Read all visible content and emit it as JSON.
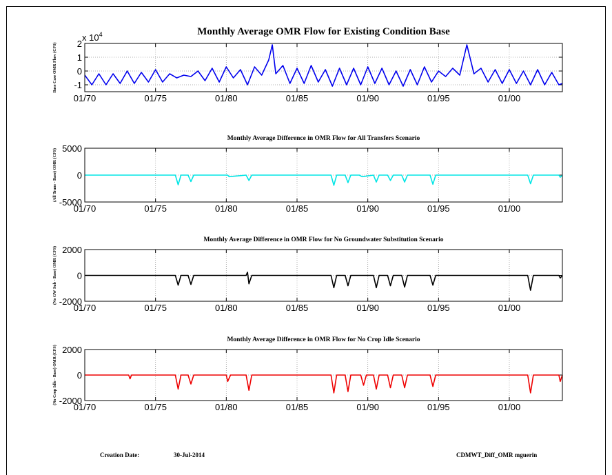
{
  "footer": {
    "creation_label": "Creation Date:",
    "creation_date": "30-Jul-2014",
    "file_tag": "CDMWT_Diff_OMR mguerin"
  },
  "chart_data": [
    {
      "type": "line",
      "title": "Monthly Average OMR Flow for Existing Condition Base",
      "ylabel": "Base Case OMR Flow (CFS)",
      "xlabel": "",
      "x_ticks": [
        "01/70",
        "01/75",
        "01/80",
        "01/85",
        "01/90",
        "01/95",
        "01/00"
      ],
      "y_ticks": [
        "2",
        "1",
        "0",
        "-1"
      ],
      "y_exponent_label": "x 10",
      "y_exponent_power": "4",
      "ylim": [
        -1.5,
        2
      ],
      "xlim": [
        1970.0,
        2003.75
      ],
      "grid": true,
      "color": "#0000ee",
      "series": [
        {
          "x": [
            1970.0,
            1970.5,
            1971.0,
            1971.5,
            1972.0,
            1972.5,
            1973.0,
            1973.5,
            1974.0,
            1974.5,
            1975.0,
            1975.5,
            1976.0,
            1976.5,
            1977.0,
            1977.5,
            1978.0,
            1978.5,
            1979.0,
            1979.5,
            1980.0,
            1980.5,
            1981.0,
            1981.5,
            1982.0,
            1982.5,
            1983.0,
            1983.25,
            1983.5,
            1984.0,
            1984.5,
            1985.0,
            1985.5,
            1986.0,
            1986.5,
            1987.0,
            1987.5,
            1988.0,
            1988.5,
            1989.0,
            1989.5,
            1990.0,
            1990.5,
            1991.0,
            1991.5,
            1992.0,
            1992.5,
            1993.0,
            1993.5,
            1994.0,
            1994.5,
            1995.0,
            1995.5,
            1996.0,
            1996.5,
            1997.0,
            1997.5,
            1998.0,
            1998.5,
            1999.0,
            1999.5,
            2000.0,
            2000.5,
            2001.0,
            2001.5,
            2002.0,
            2002.5,
            2003.0,
            2003.5,
            2003.75
          ],
          "y": [
            -0.3,
            -1.0,
            -0.2,
            -1.0,
            -0.2,
            -0.9,
            0.0,
            -0.9,
            -0.1,
            -0.8,
            0.1,
            -0.8,
            -0.2,
            -0.5,
            -0.3,
            -0.4,
            0.0,
            -0.7,
            0.2,
            -0.8,
            0.3,
            -0.5,
            0.1,
            -1.0,
            0.3,
            -0.3,
            0.8,
            1.9,
            -0.2,
            0.4,
            -0.9,
            0.2,
            -0.9,
            0.4,
            -0.8,
            0.1,
            -1.1,
            0.2,
            -1.0,
            0.2,
            -1.0,
            0.3,
            -0.9,
            0.2,
            -1.0,
            0.0,
            -1.1,
            0.1,
            -1.0,
            0.3,
            -0.8,
            0.0,
            -0.4,
            0.2,
            -0.3,
            1.9,
            -0.2,
            0.2,
            -0.8,
            0.1,
            -0.9,
            0.1,
            -0.9,
            0.0,
            -1.0,
            0.1,
            -1.0,
            -0.1,
            -1.0,
            -0.9
          ]
        }
      ]
    },
    {
      "type": "line",
      "title": "Monthly Average Difference in OMR Flow for All Transfers Scenario",
      "ylabel": "(All Trans - Base) OMR (CFS)",
      "xlabel": "",
      "x_ticks": [
        "01/70",
        "01/75",
        "01/80",
        "01/85",
        "01/90",
        "01/95",
        "01/00"
      ],
      "y_ticks": [
        "5000",
        "0",
        "-5000"
      ],
      "ylim": [
        -5000,
        5000
      ],
      "xlim": [
        1970.0,
        2003.75
      ],
      "grid": true,
      "color": "#00e5e5",
      "series": [
        {
          "x": [
            1970.0,
            1976.4,
            1976.6,
            1976.8,
            1977.3,
            1977.5,
            1977.7,
            1980.1,
            1980.2,
            1981.4,
            1981.6,
            1981.8,
            1987.4,
            1987.6,
            1987.8,
            1988.4,
            1988.6,
            1988.8,
            1989.4,
            1989.6,
            1990.4,
            1990.6,
            1990.8,
            1991.4,
            1991.6,
            1991.8,
            1992.4,
            1992.6,
            1992.8,
            1994.4,
            1994.6,
            1994.8,
            2001.3,
            2001.5,
            2001.7,
            2003.5,
            2003.6,
            2003.75
          ],
          "y": [
            0,
            0,
            -1800,
            0,
            0,
            -1200,
            0,
            0,
            -300,
            0,
            -1000,
            0,
            0,
            -1900,
            0,
            0,
            -1400,
            0,
            0,
            -300,
            0,
            -1300,
            0,
            0,
            -1000,
            0,
            0,
            -1300,
            0,
            0,
            -1700,
            0,
            0,
            -1600,
            0,
            0,
            -400,
            0
          ]
        }
      ]
    },
    {
      "type": "line",
      "title": "Monthly Average Difference in OMR Flow for No Groundwater Substitution Scenario",
      "ylabel": "(No GW Sub - Base) OMR (CFS)",
      "xlabel": "",
      "x_ticks": [
        "01/70",
        "01/75",
        "01/80",
        "01/85",
        "01/90",
        "01/95",
        "01/00"
      ],
      "y_ticks": [
        "2000",
        "0",
        "-2000"
      ],
      "ylim": [
        -2000,
        2000
      ],
      "xlim": [
        1970.0,
        2003.75
      ],
      "grid": true,
      "color": "#000000",
      "series": [
        {
          "x": [
            1970.0,
            1976.4,
            1976.6,
            1976.8,
            1977.3,
            1977.5,
            1977.7,
            1981.4,
            1981.5,
            1981.6,
            1981.8,
            1987.4,
            1987.6,
            1987.8,
            1988.4,
            1988.6,
            1988.8,
            1990.4,
            1990.6,
            1990.8,
            1991.4,
            1991.6,
            1991.8,
            1992.4,
            1992.6,
            1992.8,
            1994.4,
            1994.6,
            1994.8,
            2001.3,
            2001.5,
            2001.7,
            2003.5,
            2003.6,
            2003.75
          ],
          "y": [
            0,
            0,
            -750,
            0,
            0,
            -700,
            0,
            0,
            250,
            -650,
            0,
            0,
            -950,
            0,
            0,
            -800,
            0,
            0,
            -950,
            0,
            0,
            -800,
            0,
            0,
            -900,
            0,
            0,
            -750,
            0,
            0,
            -1150,
            0,
            0,
            -200,
            0
          ]
        }
      ]
    },
    {
      "type": "line",
      "title": "Monthly Average Difference in OMR Flow for No Crop Idle Scenario",
      "ylabel": "(No Crop Idle - Base) OMR (CFS)",
      "xlabel": "",
      "x_ticks": [
        "01/70",
        "01/75",
        "01/80",
        "01/85",
        "01/90",
        "01/95",
        "01/00"
      ],
      "y_ticks": [
        "2000",
        "0",
        "-2000"
      ],
      "ylim": [
        -2000,
        2000
      ],
      "xlim": [
        1970.0,
        2003.75
      ],
      "grid": true,
      "color": "#ee0000",
      "series": [
        {
          "x": [
            1970.0,
            1973.1,
            1973.2,
            1973.3,
            1976.4,
            1976.6,
            1976.8,
            1977.3,
            1977.5,
            1977.7,
            1980.0,
            1980.1,
            1980.3,
            1981.4,
            1981.6,
            1981.8,
            1987.4,
            1987.6,
            1987.8,
            1988.4,
            1988.6,
            1988.8,
            1989.5,
            1989.7,
            1989.9,
            1990.4,
            1990.6,
            1990.8,
            1991.4,
            1991.6,
            1991.8,
            1992.4,
            1992.6,
            1992.8,
            1994.4,
            1994.6,
            1994.8,
            2001.3,
            2001.5,
            2001.7,
            2003.5,
            2003.6,
            2003.75
          ],
          "y": [
            0,
            0,
            -300,
            0,
            0,
            -1100,
            0,
            0,
            -700,
            0,
            0,
            -500,
            0,
            0,
            -1200,
            0,
            0,
            -1400,
            0,
            0,
            -1300,
            0,
            0,
            -800,
            0,
            0,
            -1100,
            0,
            0,
            -1000,
            0,
            0,
            -1000,
            0,
            0,
            -900,
            0,
            0,
            -1400,
            0,
            0,
            -500,
            0
          ]
        }
      ]
    }
  ]
}
